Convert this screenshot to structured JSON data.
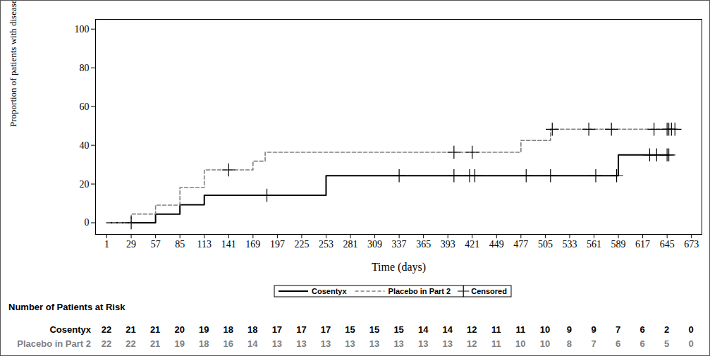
{
  "chart_data": {
    "type": "line",
    "x_label": "Time (days)",
    "y_label": "Proportion of patients with disease flare (%)",
    "xlim": [
      -12,
      685
    ],
    "xticks": [
      1,
      29,
      57,
      85,
      113,
      141,
      169,
      197,
      225,
      253,
      281,
      309,
      337,
      365,
      393,
      421,
      449,
      477,
      505,
      533,
      561,
      589,
      617,
      645,
      673
    ],
    "ylim": [
      -6,
      105
    ],
    "yticks": [
      0,
      20,
      40,
      60,
      80,
      100
    ],
    "grid": false,
    "legend": "bottom",
    "series": [
      {
        "name": "Cosentyx",
        "color": "#000000",
        "line_style": "solid",
        "x": [
          1,
          57,
          85,
          113,
          253,
          589,
          647
        ],
        "values": [
          0,
          4.5,
          9.3,
          14.2,
          24.3,
          35.0,
          35.0
        ],
        "censored_x": [
          29,
          185,
          337,
          400,
          418,
          424,
          483,
          511,
          563,
          587,
          625,
          633,
          645,
          647
        ],
        "censored_values": [
          0,
          14.2,
          24.3,
          24.3,
          24.3,
          24.3,
          24.3,
          24.3,
          24.3,
          24.3,
          35.0,
          35.0,
          35.0,
          35.0
        ]
      },
      {
        "name": "Placebo in Part 2",
        "color": "#808080",
        "line_style": "dashed",
        "x": [
          1,
          29,
          57,
          85,
          113,
          169,
          183,
          477,
          511,
          654
        ],
        "values": [
          0,
          4.5,
          9.1,
          18.2,
          27.3,
          31.8,
          36.4,
          42.5,
          48.3,
          48.3
        ],
        "censored_x": [
          141,
          400,
          421,
          513,
          555,
          581,
          630,
          645,
          647,
          650,
          654
        ],
        "censored_values": [
          27.3,
          36.4,
          36.4,
          48.3,
          48.3,
          48.3,
          48.3,
          48.3,
          48.3,
          48.3,
          48.3
        ]
      }
    ],
    "censored": {
      "name": "Censored",
      "marker": "plus",
      "color": "#000000"
    },
    "risk_table": {
      "title": "Number of Patients at Risk",
      "x": [
        1,
        29,
        57,
        85,
        113,
        141,
        169,
        197,
        225,
        253,
        281,
        309,
        337,
        365,
        393,
        421,
        449,
        477,
        505,
        533,
        561,
        589,
        617,
        645,
        673
      ],
      "rows": [
        {
          "name": "Cosentyx",
          "color": "#000000",
          "values": [
            22,
            21,
            21,
            20,
            19,
            18,
            18,
            17,
            17,
            17,
            15,
            15,
            15,
            14,
            14,
            12,
            11,
            11,
            10,
            9,
            9,
            7,
            6,
            2,
            0
          ]
        },
        {
          "name": "Placebo in Part 2",
          "color": "#808080",
          "values": [
            22,
            22,
            21,
            19,
            18,
            16,
            14,
            13,
            13,
            13,
            13,
            13,
            13,
            13,
            13,
            12,
            11,
            10,
            10,
            8,
            7,
            6,
            6,
            5,
            0
          ]
        }
      ]
    }
  }
}
